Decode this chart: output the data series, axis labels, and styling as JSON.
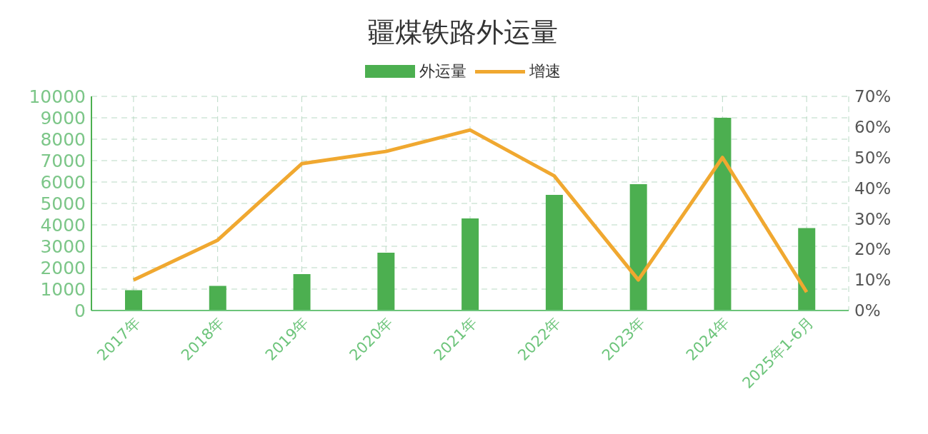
{
  "chart_data": {
    "type": "bar",
    "title": "疆煤铁路外运量",
    "categories": [
      "2017年",
      "2018年",
      "2019年",
      "2020年",
      "2021年",
      "2022年",
      "2023年",
      "2024年",
      "2025年1-6月"
    ],
    "series": [
      {
        "name": "外运量",
        "color": "#4caf50",
        "values": [
          950,
          1150,
          1700,
          2700,
          4300,
          5400,
          5900,
          9000,
          3850
        ]
      },
      {
        "name": "增速",
        "type": "line",
        "axis": "y2",
        "color": "#f0a830",
        "values": [
          10,
          23,
          48,
          52,
          59,
          44,
          10,
          50,
          6
        ]
      }
    ],
    "ylim": [
      0,
      10000
    ],
    "yticks": [
      0,
      1000,
      2000,
      3000,
      4000,
      5000,
      6000,
      7000,
      8000,
      9000,
      10000
    ],
    "y2lim": [
      0,
      70
    ],
    "y2ticks": [
      {
        "value": 0,
        "label": "0%"
      },
      {
        "value": 10,
        "label": "10%"
      },
      {
        "value": 20,
        "label": "20%"
      },
      {
        "value": 30,
        "label": "30%"
      },
      {
        "value": 40,
        "label": "40%"
      },
      {
        "value": 50,
        "label": "50%"
      },
      {
        "value": 60,
        "label": "60%"
      },
      {
        "value": 70,
        "label": "70%"
      }
    ],
    "grid": true,
    "legend": "top",
    "marker": "none",
    "line_style": "solid"
  }
}
